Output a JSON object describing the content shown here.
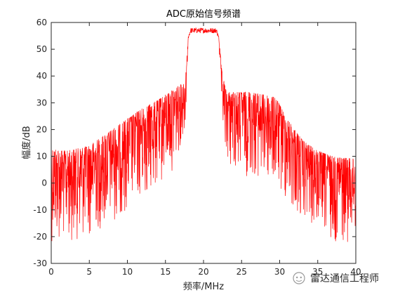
{
  "chart_data": {
    "type": "line",
    "title": "ADC原始信号频谱",
    "xlabel": "频率/MHz",
    "ylabel": "幅度/dB",
    "xlim": [
      0,
      40
    ],
    "ylim": [
      -30,
      60
    ],
    "xticks": [
      0,
      5,
      10,
      15,
      20,
      25,
      30,
      35,
      40
    ],
    "yticks": [
      -30,
      -20,
      -10,
      0,
      10,
      20,
      30,
      40,
      50,
      60
    ],
    "grid": false,
    "series": [
      {
        "color": "#ff0000",
        "envelope": {
          "x": [
            0,
            2,
            5,
            8,
            10,
            12,
            14,
            16,
            17.6,
            18.0,
            18.3,
            19,
            20,
            21,
            21.7,
            22.0,
            22.4,
            23,
            24,
            26,
            28,
            29.5,
            31,
            33,
            35,
            37,
            40
          ],
          "upper": [
            13,
            12,
            14,
            20,
            24,
            28,
            31,
            35,
            38,
            55,
            58,
            58,
            58,
            58,
            58,
            55,
            42,
            34,
            34,
            34,
            33,
            32,
            24,
            16,
            12,
            10,
            9
          ],
          "lower": [
            -22,
            -22,
            -20,
            -15,
            -10,
            -6,
            -2,
            5,
            20,
            54,
            56,
            56,
            56,
            56,
            56,
            54,
            20,
            8,
            4,
            2,
            0,
            -2,
            -8,
            -15,
            -18,
            -22,
            -22
          ]
        }
      }
    ]
  },
  "watermark": {
    "text": "雷达通信工程师",
    "icon": "wechat-icon"
  }
}
